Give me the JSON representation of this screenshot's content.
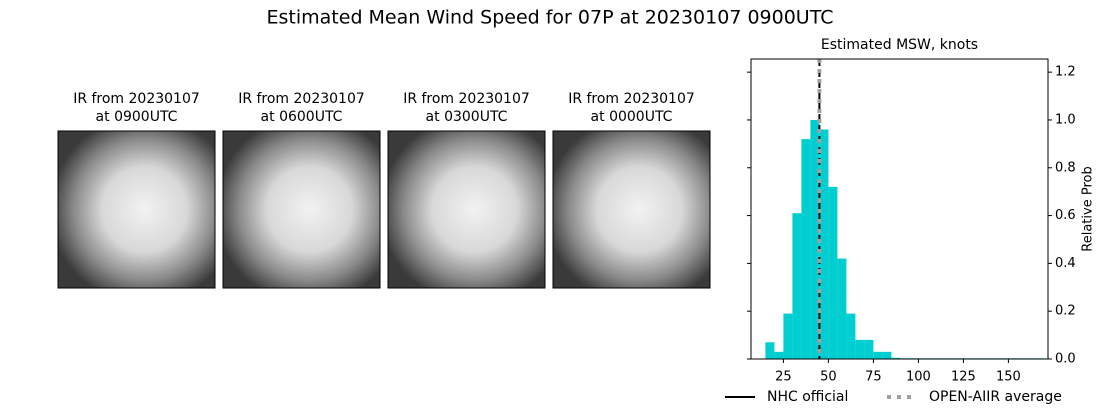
{
  "title": "Estimated Mean Wind Speed for 07P at 20230107 0900UTC",
  "panels": [
    {
      "title": [
        "IR from 20230107",
        "at 0900UTC"
      ]
    },
    {
      "title": [
        "IR from 20230107",
        "at 0600UTC"
      ]
    },
    {
      "title": [
        "IR from 20230107",
        "at 0300UTC"
      ]
    },
    {
      "title": [
        "IR from 20230107",
        "at 0000UTC"
      ]
    }
  ],
  "chart_data": {
    "type": "histogram",
    "title": "Estimated MSW, knots",
    "ylabel": "Relative Prob",
    "bins": [
      15,
      20,
      25,
      30,
      35,
      40,
      45,
      50,
      55,
      60,
      65,
      70,
      75,
      80,
      85,
      90,
      95,
      100,
      105,
      110,
      115,
      120,
      125,
      130,
      135,
      140,
      145,
      150,
      155,
      160,
      165,
      170
    ],
    "values": [
      0.07,
      0.03,
      0.19,
      0.61,
      0.92,
      1.0,
      0.96,
      0.72,
      0.42,
      0.19,
      0.08,
      0.08,
      0.03,
      0.03,
      0.005,
      0.003,
      0.003,
      0.003,
      0.003,
      0.003,
      0.003,
      0.003,
      0.003,
      0.003,
      0.003,
      0.003,
      0.003,
      0.003,
      0.003,
      0.003,
      0.003
    ],
    "color": "#00ced1",
    "xlim": [
      7,
      172
    ],
    "xticks": [
      25,
      50,
      75,
      100,
      125,
      150
    ],
    "ylim": [
      0,
      1.255
    ],
    "yticks": [
      {
        "value": 0,
        "label": "0.0"
      },
      0.2,
      0.4,
      0.6,
      0.8,
      {
        "value": 1,
        "label": "1.0"
      },
      1.2
    ],
    "lines": [
      {
        "name": "NHC official",
        "x": 45,
        "color": "#000000",
        "style": "solid"
      },
      {
        "name": "OPEN-AIIR average",
        "x": 45,
        "color": "#a0a0a0",
        "style": "dotted"
      }
    ]
  }
}
